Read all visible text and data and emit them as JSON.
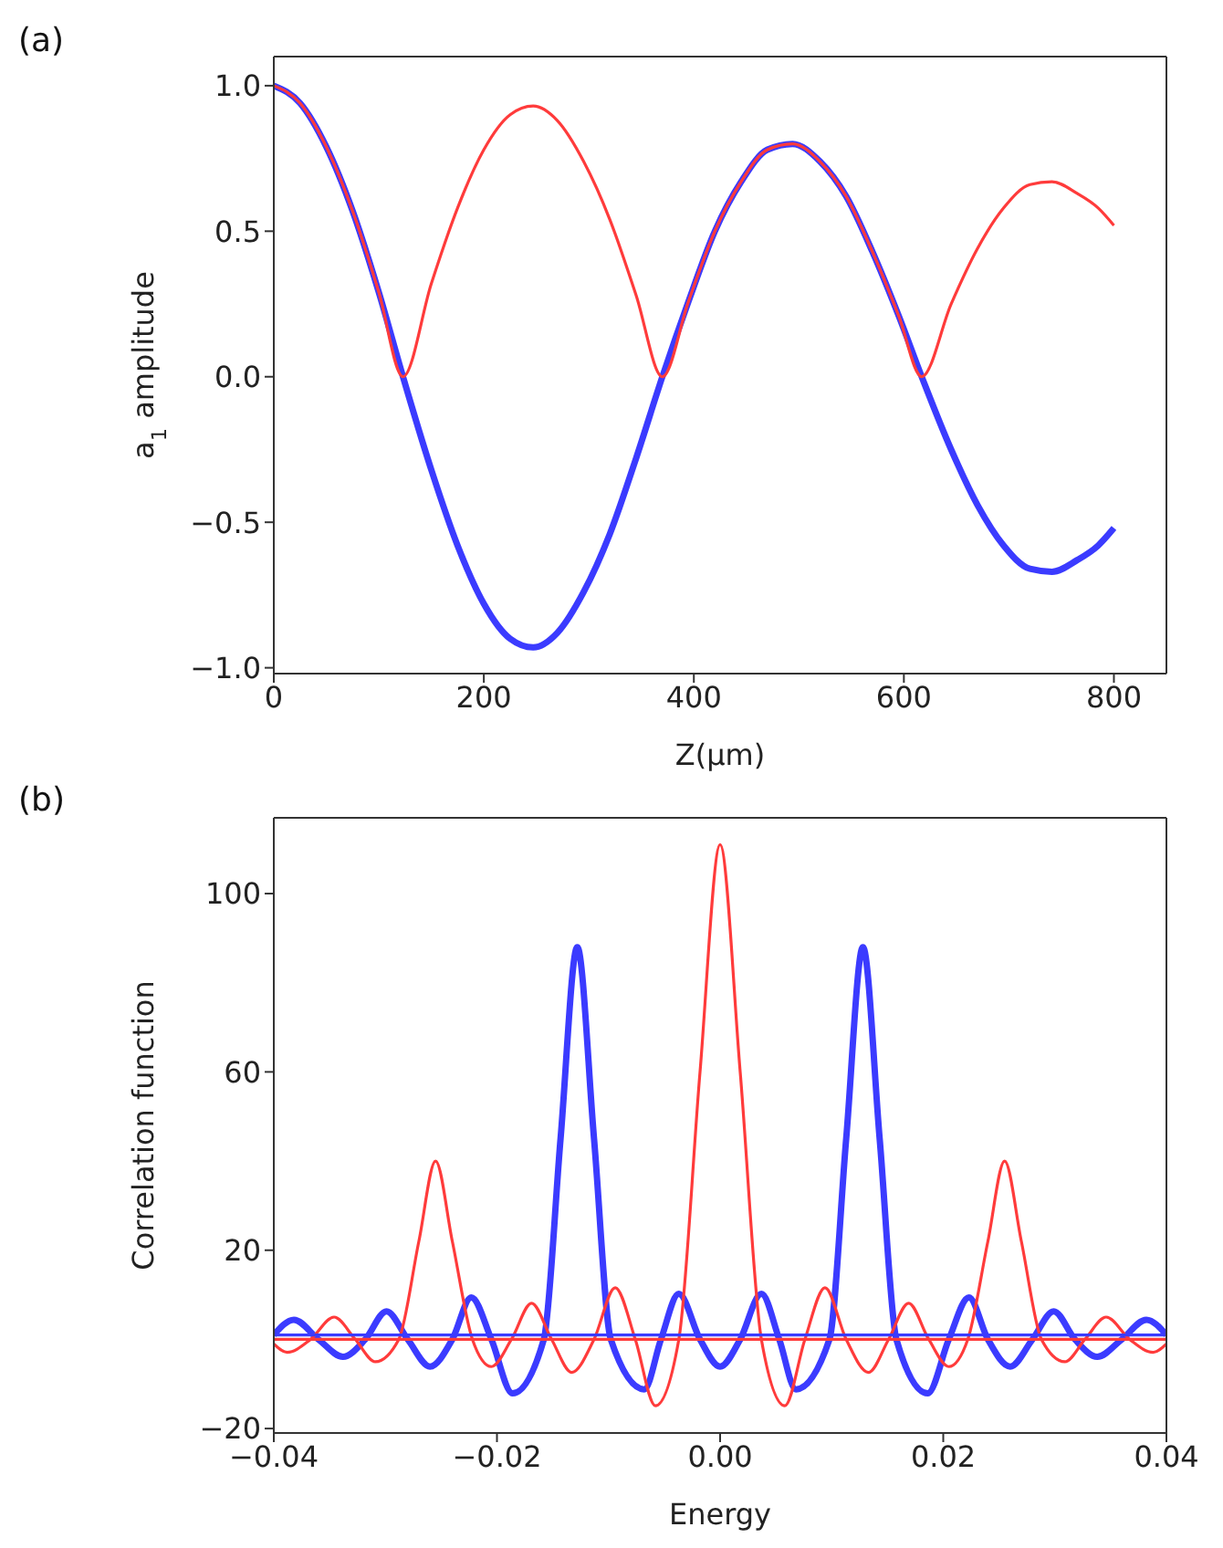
{
  "chart_data": [
    {
      "type": "line",
      "annotations": [
        "(a)"
      ],
      "xlabel": "Z(μm)",
      "ylabel": "a$_{1}$ amplitude",
      "xlim": [
        0,
        850
      ],
      "xticks": [
        0,
        200,
        400,
        600,
        800
      ],
      "ylim": [
        -1.02,
        1.1
      ],
      "yticks": [
        {
          "value": -1,
          "label": "−1.0"
        },
        {
          "value": -0.5,
          "label": "−0.5"
        },
        {
          "value": 0,
          "label": "0.0"
        },
        {
          "value": 0.5,
          "label": "0.5"
        },
        {
          "value": 1,
          "label": "1.0"
        }
      ],
      "grid": false,
      "legend": false,
      "marker": "none",
      "line_style": "solid",
      "x": [
        0,
        25,
        50,
        75,
        100,
        123,
        150,
        175,
        200,
        225,
        247,
        270,
        295,
        320,
        345,
        370,
        395,
        420,
        445,
        470,
        494,
        520,
        545,
        570,
        595,
        617,
        645,
        670,
        695,
        720,
        741,
        765,
        785,
        800
      ],
      "series": [
        {
          "color": "#3b3bff",
          "values": [
            1.0,
            0.94,
            0.79,
            0.57,
            0.29,
            0,
            -0.32,
            -0.58,
            -0.78,
            -0.9,
            -0.93,
            -0.88,
            -0.74,
            -0.54,
            -0.28,
            0,
            0.26,
            0.5,
            0.67,
            0.78,
            0.8,
            0.74,
            0.62,
            0.43,
            0.21,
            0,
            -0.25,
            -0.44,
            -0.58,
            -0.66,
            -0.67,
            -0.63,
            -0.58,
            -0.52
          ]
        },
        {
          "color": "#ff3b3b",
          "values": [
            1.0,
            0.94,
            0.79,
            0.57,
            0.29,
            0,
            0.32,
            0.58,
            0.78,
            0.9,
            0.93,
            0.88,
            0.74,
            0.54,
            0.28,
            0,
            0.26,
            0.5,
            0.67,
            0.78,
            0.8,
            0.74,
            0.62,
            0.43,
            0.21,
            0,
            0.25,
            0.44,
            0.58,
            0.66,
            0.67,
            0.63,
            0.58,
            0.52
          ]
        }
      ]
    },
    {
      "type": "line",
      "annotations": [
        "(b)"
      ],
      "xlabel": "Energy",
      "ylabel": "Correlation function",
      "xlim": [
        -0.04,
        0.04
      ],
      "xticks": [
        {
          "value": -0.04,
          "label": "−0.04"
        },
        {
          "value": -0.02,
          "label": "−0.02"
        },
        {
          "value": 0,
          "label": "0.00"
        },
        {
          "value": 0.02,
          "label": "0.02"
        },
        {
          "value": 0.04,
          "label": "0.04"
        }
      ],
      "ylim": [
        -21,
        117
      ],
      "yticks": [
        {
          "value": -20,
          "label": "−20"
        },
        20,
        60,
        100
      ],
      "grid": false,
      "legend": false,
      "marker": "none",
      "line_style": "solid",
      "series": [
        {
          "color": "#3b3bff",
          "x": [
            -0.04,
            -0.0382,
            -0.036,
            -0.0338,
            -0.0318,
            -0.0299,
            -0.028,
            -0.026,
            -0.024,
            -0.0223,
            -0.0205,
            -0.0186,
            -0.0158,
            -0.0143,
            -0.0128,
            -0.0113,
            -0.0098,
            -0.0068,
            -0.0053,
            -0.0037,
            -0.0018,
            0,
            0.0018,
            0.0037,
            0.0053,
            0.0068,
            0.0098,
            0.0113,
            0.0128,
            0.0143,
            0.0158,
            0.0186,
            0.0205,
            0.0223,
            0.024,
            0.026,
            0.028,
            0.0299,
            0.0318,
            0.0338,
            0.036,
            0.0382,
            0.04
          ],
          "values": [
            1,
            4.4,
            0,
            -3.9,
            0,
            6.3,
            0,
            -6.1,
            0,
            9.4,
            0,
            -12.1,
            0,
            45,
            88,
            45,
            0,
            -11.2,
            0,
            10.2,
            0,
            -6.1,
            0,
            10.2,
            0,
            -11.2,
            0,
            45,
            88,
            45,
            0,
            -12.1,
            0,
            9.4,
            0,
            -6.1,
            0,
            6.3,
            0,
            -3.9,
            0,
            4.4,
            1
          ]
        },
        {
          "color": "#ff3b3b",
          "x": [
            -0.04,
            -0.0388,
            -0.0367,
            -0.0346,
            -0.0327,
            -0.0309,
            -0.0288,
            -0.027,
            -0.0255,
            -0.024,
            -0.0222,
            -0.0205,
            -0.0187,
            -0.0169,
            -0.0151,
            -0.0133,
            -0.0113,
            -0.0094,
            -0.0076,
            -0.0058,
            -0.0037,
            -0.0018,
            0,
            0.0018,
            0.0037,
            0.0058,
            0.0076,
            0.0094,
            0.0113,
            0.0133,
            0.0151,
            0.0169,
            0.0187,
            0.0205,
            0.0222,
            0.024,
            0.0255,
            0.027,
            0.0288,
            0.0309,
            0.0327,
            0.0346,
            0.0367,
            0.0388,
            0.04
          ],
          "values": [
            -1,
            -2.9,
            0,
            5.0,
            0,
            -5.0,
            0,
            22,
            40,
            22,
            0,
            -6.1,
            0,
            8.1,
            0,
            -7.4,
            0,
            11.6,
            0,
            -14.9,
            0,
            60,
            111,
            60,
            0,
            -14.9,
            0,
            11.6,
            0,
            -7.4,
            0,
            8.1,
            0,
            -6.1,
            0,
            22,
            40,
            22,
            0,
            -5.0,
            0,
            5.0,
            0,
            -2.9,
            -1
          ]
        },
        {
          "color": "#3b3bff",
          "x": [
            -0.04,
            0.04
          ],
          "values": [
            1,
            1
          ]
        },
        {
          "color": "#ff3b3b",
          "x": [
            -0.04,
            0.04
          ],
          "values": [
            0,
            0
          ]
        }
      ]
    }
  ]
}
